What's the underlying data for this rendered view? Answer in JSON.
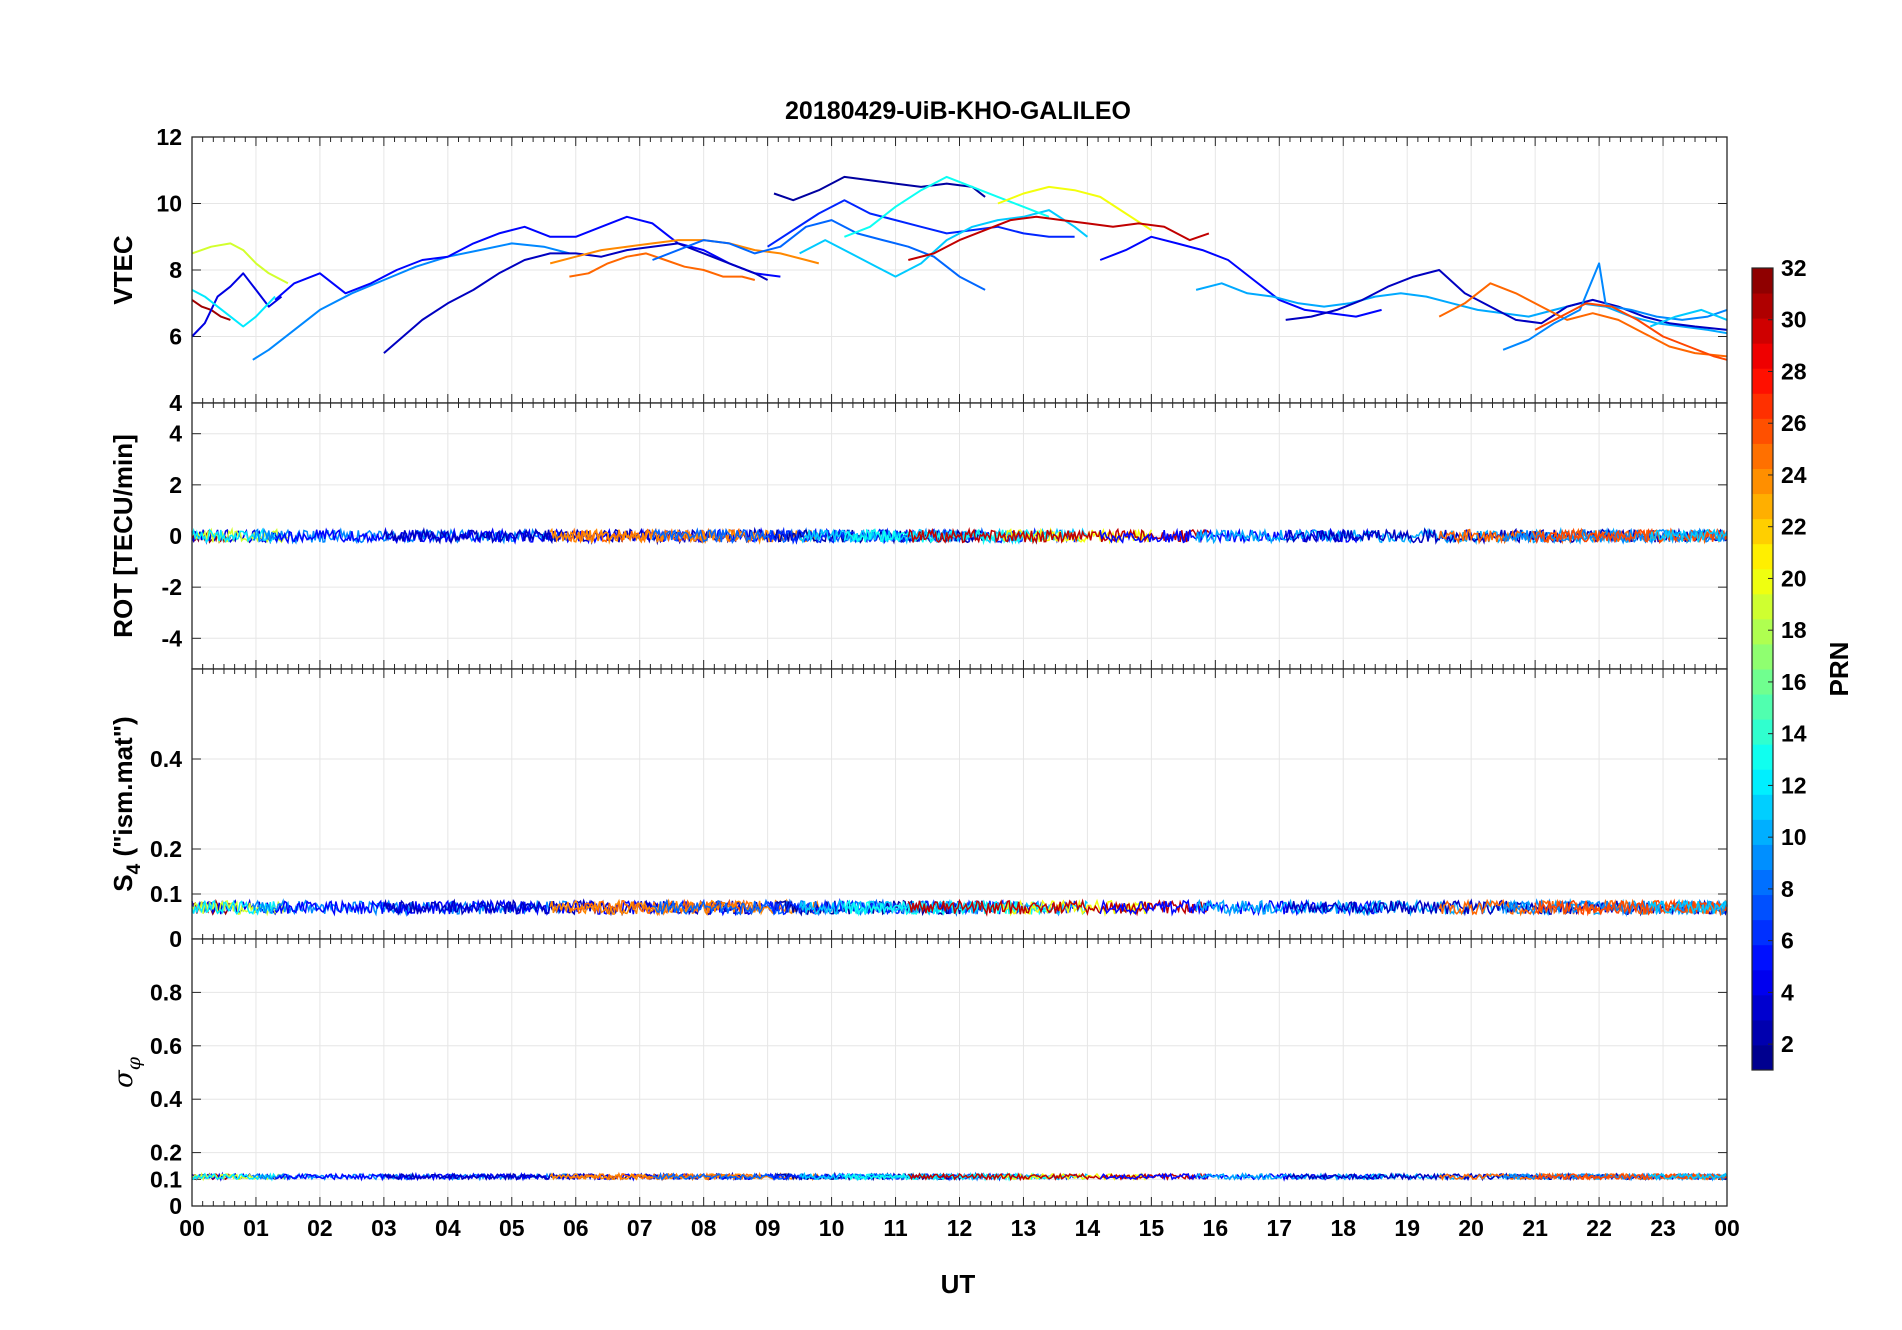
{
  "chart_data": {
    "title": "20180429-UiB-KHO-GALILEO",
    "type": "line",
    "xlabel": "UT",
    "x_ticks": [
      "00",
      "01",
      "02",
      "03",
      "04",
      "05",
      "06",
      "07",
      "08",
      "09",
      "10",
      "11",
      "12",
      "13",
      "14",
      "15",
      "16",
      "17",
      "18",
      "19",
      "20",
      "21",
      "22",
      "23",
      "00"
    ],
    "xlim": [
      0,
      24
    ],
    "grid": true,
    "colorbar": {
      "label": "PRN",
      "range": [
        1,
        32
      ],
      "ticks": [
        2,
        4,
        6,
        8,
        10,
        12,
        14,
        16,
        18,
        20,
        22,
        24,
        26,
        28,
        30,
        32
      ],
      "colormap": "jet"
    },
    "panels": [
      {
        "id": "vtec",
        "ylabel": "VTEC",
        "ylim": [
          4,
          12
        ],
        "y_ticks": [
          4,
          6,
          8,
          10,
          12
        ],
        "series": [
          {
            "prn": 31,
            "x": [
              0.0,
              0.15,
              0.3,
              0.45,
              0.6
            ],
            "y": [
              7.1,
              6.9,
              6.8,
              6.6,
              6.5
            ]
          },
          {
            "prn": 4,
            "x": [
              0.0,
              0.2,
              0.4,
              0.6,
              0.8,
              1.0,
              1.2,
              1.4
            ],
            "y": [
              6.0,
              6.4,
              7.2,
              7.5,
              7.9,
              7.4,
              6.9,
              7.2
            ]
          },
          {
            "prn": 19,
            "x": [
              0.0,
              0.3,
              0.6,
              0.8,
              1.0,
              1.2,
              1.5
            ],
            "y": [
              8.5,
              8.7,
              8.8,
              8.6,
              8.2,
              7.9,
              7.6
            ]
          },
          {
            "prn": 12,
            "x": [
              0.0,
              0.2,
              0.4,
              0.6,
              0.8,
              1.0,
              1.3
            ],
            "y": [
              7.4,
              7.2,
              6.9,
              6.6,
              6.3,
              6.6,
              7.2
            ]
          },
          {
            "prn": 9,
            "x": [
              0.95,
              1.2,
              1.6,
              2.0,
              2.5,
              3.0,
              3.5,
              4.0,
              4.5,
              5.0,
              5.5,
              5.9
            ],
            "y": [
              5.3,
              5.6,
              6.2,
              6.8,
              7.3,
              7.7,
              8.1,
              8.4,
              8.6,
              8.8,
              8.7,
              8.5
            ]
          },
          {
            "prn": 5,
            "x": [
              1.3,
              1.6,
              2.0,
              2.4,
              2.8,
              3.2,
              3.6,
              4.0,
              4.4,
              4.8,
              5.2,
              5.6,
              6.0,
              6.4,
              6.8,
              7.2,
              7.6,
              8.0,
              8.4,
              8.8,
              9.2
            ],
            "y": [
              7.1,
              7.6,
              7.9,
              7.3,
              7.6,
              8.0,
              8.3,
              8.4,
              8.8,
              9.1,
              9.3,
              9.0,
              9.0,
              9.3,
              9.6,
              9.4,
              8.8,
              8.6,
              8.2,
              7.9,
              7.8
            ]
          },
          {
            "prn": 3,
            "x": [
              3.0,
              3.3,
              3.6,
              4.0,
              4.4,
              4.8,
              5.2,
              5.6,
              6.0,
              6.4,
              6.8,
              7.2,
              7.6,
              8.0,
              8.4,
              8.8,
              9.0
            ],
            "y": [
              5.5,
              6.0,
              6.5,
              7.0,
              7.4,
              7.9,
              8.3,
              8.5,
              8.5,
              8.4,
              8.6,
              8.7,
              8.8,
              8.5,
              8.2,
              7.9,
              7.7
            ]
          },
          {
            "prn": 25,
            "x": [
              5.9,
              6.2,
              6.5,
              6.8,
              7.1,
              7.4,
              7.7,
              8.0,
              8.3,
              8.6,
              8.8
            ],
            "y": [
              7.8,
              7.9,
              8.2,
              8.4,
              8.5,
              8.3,
              8.1,
              8.0,
              7.8,
              7.8,
              7.7
            ]
          },
          {
            "prn": 24,
            "x": [
              5.6,
              6.0,
              6.4,
              6.8,
              7.2,
              7.6,
              8.0,
              8.4,
              8.8,
              9.2,
              9.6,
              9.8
            ],
            "y": [
              8.2,
              8.4,
              8.6,
              8.7,
              8.8,
              8.9,
              8.9,
              8.8,
              8.6,
              8.5,
              8.3,
              8.2
            ]
          },
          {
            "prn": 8,
            "x": [
              7.2,
              7.6,
              8.0,
              8.4,
              8.8,
              9.2,
              9.6,
              10.0,
              10.4,
              10.8,
              11.2,
              11.6,
              12.0,
              12.4
            ],
            "y": [
              8.3,
              8.6,
              8.9,
              8.8,
              8.5,
              8.7,
              9.3,
              9.5,
              9.1,
              8.9,
              8.7,
              8.4,
              7.8,
              7.4
            ]
          },
          {
            "prn": 2,
            "x": [
              9.1,
              9.4,
              9.8,
              10.2,
              10.6,
              11.0,
              11.4,
              11.8,
              12.2,
              12.4
            ],
            "y": [
              10.3,
              10.1,
              10.4,
              10.8,
              10.7,
              10.6,
              10.5,
              10.6,
              10.5,
              10.2
            ]
          },
          {
            "prn": 6,
            "x": [
              9.0,
              9.4,
              9.8,
              10.2,
              10.6,
              11.0,
              11.4,
              11.8,
              12.2,
              12.6,
              13.0,
              13.4,
              13.8
            ],
            "y": [
              8.7,
              9.2,
              9.7,
              10.1,
              9.7,
              9.5,
              9.3,
              9.1,
              9.2,
              9.3,
              9.1,
              9.0,
              9.0
            ]
          },
          {
            "prn": 11,
            "x": [
              9.5,
              9.9,
              10.3,
              10.7,
              11.0,
              11.4,
              11.8,
              12.2,
              12.6,
              13.0,
              13.4,
              13.8,
              14.0
            ],
            "y": [
              8.5,
              8.9,
              8.5,
              8.1,
              7.8,
              8.2,
              8.9,
              9.3,
              9.5,
              9.6,
              9.8,
              9.3,
              9.0
            ]
          },
          {
            "prn": 13,
            "x": [
              10.2,
              10.6,
              11.0,
              11.4,
              11.8,
              12.2,
              12.6,
              13.0,
              13.4
            ],
            "y": [
              9.0,
              9.3,
              9.9,
              10.4,
              10.8,
              10.5,
              10.2,
              9.9,
              9.6
            ]
          },
          {
            "prn": 20,
            "x": [
              12.6,
              13.0,
              13.4,
              13.8,
              14.2,
              14.6,
              15.0
            ],
            "y": [
              10.0,
              10.3,
              10.5,
              10.4,
              10.2,
              9.7,
              9.2
            ]
          },
          {
            "prn": 30,
            "x": [
              11.2,
              11.6,
              12.0,
              12.4,
              12.8,
              13.2,
              13.6,
              14.0,
              14.4,
              14.8,
              15.2,
              15.6,
              15.9
            ],
            "y": [
              8.3,
              8.5,
              8.9,
              9.2,
              9.5,
              9.6,
              9.5,
              9.4,
              9.3,
              9.4,
              9.3,
              8.9,
              9.1
            ]
          },
          {
            "prn": 5,
            "x": [
              14.2,
              14.6,
              15.0,
              15.4,
              15.8,
              16.2,
              16.6,
              17.0,
              17.4,
              17.8,
              18.2,
              18.6
            ],
            "y": [
              8.3,
              8.6,
              9.0,
              8.8,
              8.6,
              8.3,
              7.7,
              7.1,
              6.8,
              6.7,
              6.6,
              6.8
            ]
          },
          {
            "prn": 10,
            "x": [
              15.7,
              16.1,
              16.5,
              16.9,
              17.3,
              17.7,
              18.1,
              18.5,
              18.9,
              19.3,
              19.7,
              20.1,
              20.5,
              20.9,
              21.3,
              21.7,
              22.1,
              22.5,
              22.9,
              23.3,
              23.7,
              24.0
            ],
            "y": [
              7.4,
              7.6,
              7.3,
              7.2,
              7.0,
              6.9,
              7.0,
              7.2,
              7.3,
              7.2,
              7.0,
              6.8,
              6.7,
              6.6,
              6.8,
              7.0,
              6.9,
              6.6,
              6.4,
              6.3,
              6.2,
              6.1
            ]
          },
          {
            "prn": 3,
            "x": [
              17.1,
              17.5,
              17.9,
              18.3,
              18.7,
              19.1,
              19.5,
              19.9,
              20.3,
              20.7,
              21.1,
              21.5,
              21.9,
              22.3,
              22.7,
              23.1,
              23.5,
              24.0
            ],
            "y": [
              6.5,
              6.6,
              6.8,
              7.1,
              7.5,
              7.8,
              8.0,
              7.3,
              6.9,
              6.5,
              6.4,
              6.9,
              7.1,
              6.9,
              6.6,
              6.4,
              6.3,
              6.2
            ]
          },
          {
            "prn": 25,
            "x": [
              19.5,
              19.9,
              20.3,
              20.7,
              21.1,
              21.5,
              21.9,
              22.3,
              22.7,
              23.1,
              23.5,
              24.0
            ],
            "y": [
              6.6,
              7.0,
              7.6,
              7.3,
              6.9,
              6.5,
              6.7,
              6.5,
              6.1,
              5.7,
              5.5,
              5.4
            ]
          },
          {
            "prn": 9,
            "x": [
              20.5,
              20.9,
              21.3,
              21.7,
              22.0,
              22.1,
              22.2,
              22.5,
              22.9,
              23.3,
              23.7,
              24.0
            ],
            "y": [
              5.6,
              5.9,
              6.4,
              6.8,
              8.2,
              7.0,
              6.9,
              6.8,
              6.6,
              6.5,
              6.6,
              6.8
            ]
          },
          {
            "prn": 26,
            "x": [
              21.0,
              21.4,
              21.8,
              22.2,
              22.6,
              23.0,
              23.4,
              23.8,
              24.0
            ],
            "y": [
              6.2,
              6.6,
              7.0,
              6.9,
              6.5,
              6.0,
              5.7,
              5.4,
              5.3
            ]
          },
          {
            "prn": 11,
            "x": [
              22.8,
              23.2,
              23.6,
              24.0
            ],
            "y": [
              6.3,
              6.6,
              6.8,
              6.5
            ]
          }
        ]
      },
      {
        "id": "rot",
        "ylabel": "ROT [TECU/min]",
        "ylim": [
          -5.2,
          5.2
        ],
        "y_ticks": [
          -4,
          -2,
          0,
          2,
          4
        ]
      },
      {
        "id": "s4",
        "ylabel": "S4 (\"ism.mat\")",
        "ylabel_main": "S",
        "ylabel_sub": "4",
        "ylabel_rest": " (\"ism.mat\")",
        "ylim": [
          0,
          0.6
        ],
        "y_ticks": [
          0,
          0.1,
          0.2,
          0.4
        ],
        "tick_labels": [
          "0",
          "0.1",
          "0.2",
          "0.4"
        ]
      },
      {
        "id": "sigma",
        "ylabel": "σφ",
        "ylabel_main": "σ",
        "ylabel_sub": "φ",
        "ylim": [
          0,
          1
        ],
        "y_ticks": [
          0,
          0.1,
          0.2,
          0.4,
          0.6,
          0.8
        ],
        "tick_labels": [
          "0",
          "0.1",
          "0.2",
          "0.4",
          "0.6",
          "0.8"
        ]
      }
    ]
  }
}
